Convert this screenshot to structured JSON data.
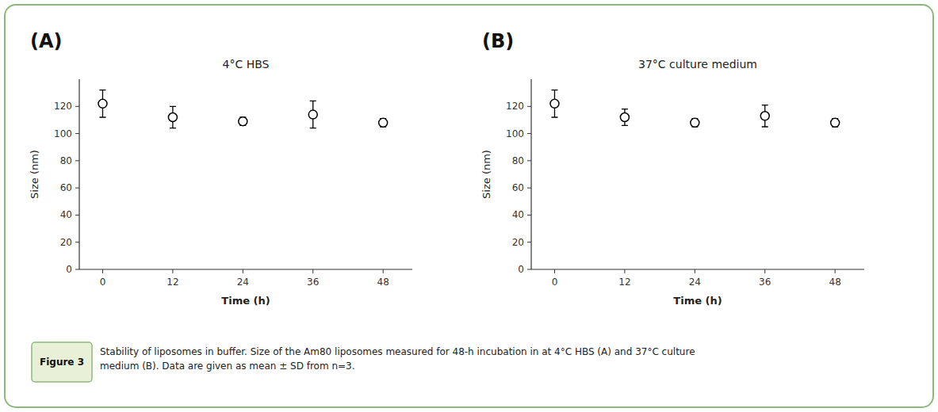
{
  "chart_data": [
    {
      "type": "scatter",
      "title": "4°C HBS",
      "annotations": [
        "(A)"
      ],
      "x": [
        0,
        12,
        24,
        36,
        48
      ],
      "values": [
        122,
        112,
        109,
        114,
        108
      ],
      "errors": [
        10,
        8,
        3,
        10,
        3
      ],
      "x_label": "Time (h)",
      "y_label": "Size (nm)",
      "xlim": [
        -4,
        53
      ],
      "xticks": [
        0,
        12,
        24,
        36,
        48
      ],
      "ylim": [
        0,
        140
      ],
      "yticks": [
        0,
        20,
        40,
        60,
        80,
        100,
        120
      ],
      "marker": "circle",
      "color": "#000000",
      "grid": false
    },
    {
      "type": "scatter",
      "title": "37°C culture medium",
      "annotations": [
        "(B)"
      ],
      "x": [
        0,
        12,
        24,
        36,
        48
      ],
      "values": [
        122,
        112,
        108,
        113,
        108
      ],
      "errors": [
        10,
        6,
        3,
        8,
        3
      ],
      "x_label": "Time (h)",
      "y_label": "Size (nm)",
      "xlim": [
        -4,
        53
      ],
      "xticks": [
        0,
        12,
        24,
        36,
        48
      ],
      "ylim": [
        0,
        140
      ],
      "yticks": [
        0,
        20,
        40,
        60,
        80,
        100,
        120
      ],
      "marker": "circle",
      "color": "#000000",
      "grid": false
    }
  ],
  "annotations": [
    "Figure 3",
    "Stability of liposomes in buffer. Size of the Am80 liposomes measured for 48-h incubation in at 4°C HBS (A) and 37°C culture\nmedium (B). Data are given as mean ± SD from n=3."
  ],
  "colors": {
    "border": "#8db87a",
    "label_box": "#e8f0d8",
    "background": "#ffffff"
  }
}
